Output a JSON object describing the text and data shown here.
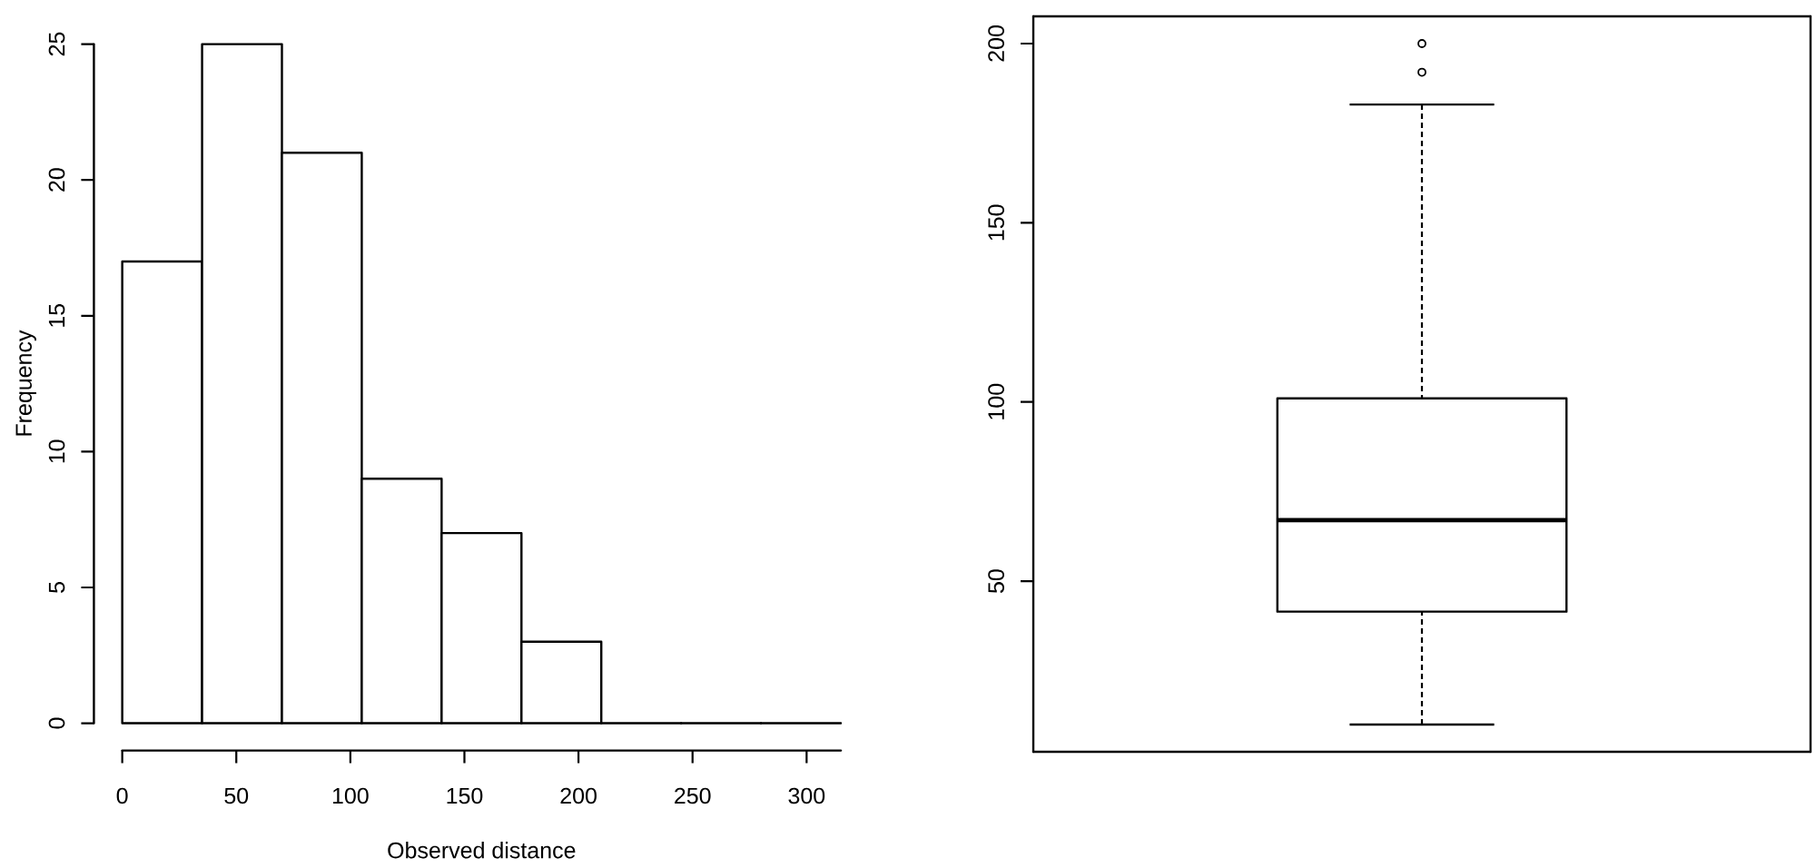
{
  "chart_data": [
    {
      "type": "histogram",
      "xlabel": "Observed distance",
      "ylabel": "Frequency",
      "bins": [
        0,
        35,
        70,
        105,
        140,
        175,
        210,
        245,
        280,
        315
      ],
      "values": [
        17,
        25,
        21,
        9,
        7,
        3,
        0,
        0,
        0
      ],
      "color": "#ffffff",
      "xlim": [
        0,
        315
      ],
      "ylim": [
        0,
        25
      ],
      "xticks": [
        0,
        50,
        100,
        150,
        200,
        250,
        300
      ],
      "yticks": [
        0,
        5,
        10,
        15,
        20,
        25
      ]
    },
    {
      "type": "box",
      "categories": [
        null
      ],
      "boxes": [
        {
          "low": 10,
          "q1": 41.5,
          "median": 67,
          "q3": 101,
          "high": 183,
          "outliers": [
            192,
            200
          ]
        }
      ],
      "ylim": [
        2.4,
        207.6
      ],
      "yticks": [
        50,
        100,
        150,
        200
      ],
      "tick_labels": "y"
    }
  ]
}
